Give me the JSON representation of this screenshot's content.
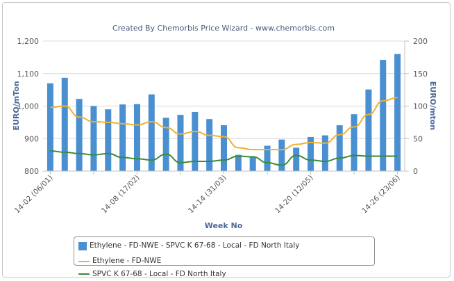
{
  "chart_data": {
    "type": "bar+line",
    "title": "Created By Chemorbis Price Wizard - www.chemorbis.com",
    "xlabel": "Week No",
    "ylabel_left": "EURO/mTon",
    "ylabel_right": "EURO/mton",
    "ylim_left": [
      800,
      1200
    ],
    "ylim_right": [
      0,
      200
    ],
    "yticks_left": [
      "800",
      "900",
      "1,000",
      "1,100",
      "1,200"
    ],
    "yticks_right": [
      "0",
      "50",
      "100",
      "150",
      "200"
    ],
    "xtick_labels": [
      "14-02 (06/01)",
      "14-08 (17/02)",
      "14-14 (31/03)",
      "14-20 (12/05)",
      "14-26 (23/06)"
    ],
    "n_points": 25,
    "grid": true,
    "legend_placement": "bottom",
    "series": [
      {
        "name": "Ethylene - FD-NWE - SPVC K 67-68 - Local - FD North Italy",
        "kind": "bar",
        "axis": "left",
        "color": "#4a90d0",
        "values": [
          1070,
          1087,
          1022,
          1000,
          990,
          1005,
          1006,
          1036,
          964,
          973,
          982,
          960,
          941,
          850,
          845,
          878,
          897,
          872,
          905,
          910,
          941,
          975,
          1051,
          1142,
          1160
        ]
      },
      {
        "name": "Ethylene - FD-NWE",
        "kind": "line",
        "axis": "right",
        "color": "#f0b030",
        "values": [
          98,
          100,
          83,
          76,
          75,
          73,
          71,
          76,
          67,
          57,
          61,
          55,
          53,
          36,
          33,
          33,
          33,
          41,
          44,
          43,
          56,
          68,
          87,
          108,
          113
        ]
      },
      {
        "name": "SPVC K 67-68 - Local - FD North Italy",
        "kind": "line",
        "axis": "right",
        "color": "#3a8a3a",
        "values": [
          31,
          29,
          27,
          25,
          27,
          21,
          19,
          17,
          26,
          13,
          15,
          15,
          17,
          23,
          22,
          13,
          9,
          24,
          17,
          15,
          20,
          24,
          23,
          23,
          23
        ]
      }
    ]
  }
}
